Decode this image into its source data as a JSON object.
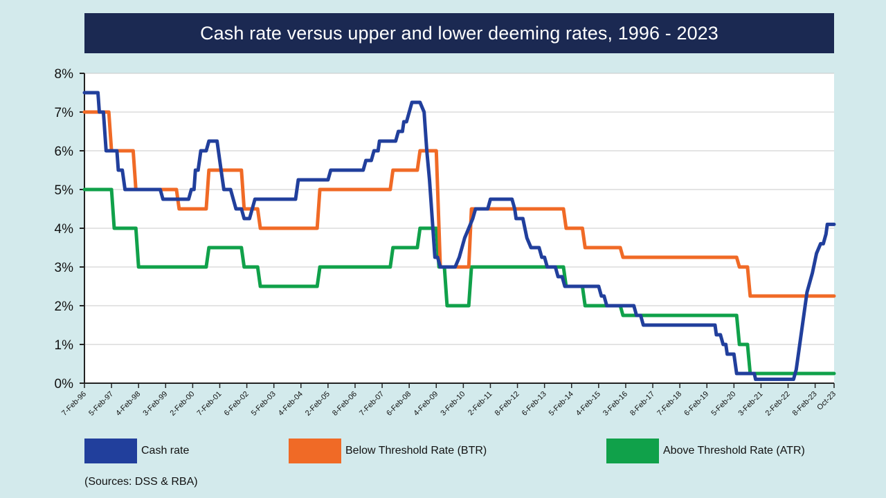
{
  "title": "Cash rate versus upper and lower deeming rates, 1996 - 2023",
  "source": "(Sources: DSS & RBA)",
  "colors": {
    "cash": "#213f9c",
    "btr": "#f06a26",
    "atr": "#10a14a",
    "title_bg": "#1b2952",
    "page_bg": "#d3eaec"
  },
  "chart_data": {
    "type": "line",
    "title": "Cash rate versus upper and lower deeming rates, 1996 - 2023",
    "xlabel": "",
    "ylabel": "",
    "xlim": [
      1996.1,
      2023.8
    ],
    "ylim": [
      0,
      8
    ],
    "y_ticks": [
      "0%",
      "1%",
      "2%",
      "3%",
      "4%",
      "5%",
      "6%",
      "7%",
      "8%"
    ],
    "x_ticks": [
      {
        "label": "7-Feb-96",
        "x": 1996.1
      },
      {
        "label": "5-Feb-97",
        "x": 1997.1
      },
      {
        "label": "4-Feb-98",
        "x": 1998.1
      },
      {
        "label": "3-Feb-99",
        "x": 1999.1
      },
      {
        "label": "2-Feb-00",
        "x": 2000.1
      },
      {
        "label": "7-Feb-01",
        "x": 2001.1
      },
      {
        "label": "6-Feb-02",
        "x": 2002.1
      },
      {
        "label": "5-Feb-03",
        "x": 2003.1
      },
      {
        "label": "4-Feb-04",
        "x": 2004.1
      },
      {
        "label": "2-Feb-05",
        "x": 2005.1
      },
      {
        "label": "8-Feb-06",
        "x": 2006.1
      },
      {
        "label": "7-Feb-07",
        "x": 2007.1
      },
      {
        "label": "6-Feb-08",
        "x": 2008.1
      },
      {
        "label": "4-Feb-09",
        "x": 2009.1
      },
      {
        "label": "3-Feb-10",
        "x": 2010.1
      },
      {
        "label": "2-Feb-11",
        "x": 2011.1
      },
      {
        "label": "8-Feb-12",
        "x": 2012.1
      },
      {
        "label": "6-Feb-13",
        "x": 2013.1
      },
      {
        "label": "5-Feb-14",
        "x": 2014.1
      },
      {
        "label": "4-Feb-15",
        "x": 2015.1
      },
      {
        "label": "3-Feb-16",
        "x": 2016.1
      },
      {
        "label": "8-Feb-17",
        "x": 2017.1
      },
      {
        "label": "7-Feb-18",
        "x": 2018.1
      },
      {
        "label": "6-Feb-19",
        "x": 2019.1
      },
      {
        "label": "5-Feb-20",
        "x": 2020.1
      },
      {
        "label": "3-Feb-21",
        "x": 2021.1
      },
      {
        "label": "2-Feb-22",
        "x": 2022.1
      },
      {
        "label": "8-Feb-23",
        "x": 2023.1
      },
      {
        "label": "Oct-23",
        "x": 2023.8
      }
    ],
    "grid": true,
    "legend_position": "bottom",
    "series": [
      {
        "name": "Cash rate",
        "color": "#213f9c",
        "points": [
          [
            1996.1,
            7.5
          ],
          [
            1996.6,
            7.5
          ],
          [
            1996.65,
            7.0
          ],
          [
            1996.8,
            7.0
          ],
          [
            1996.9,
            6.0
          ],
          [
            1997.3,
            6.0
          ],
          [
            1997.35,
            5.5
          ],
          [
            1997.5,
            5.5
          ],
          [
            1997.6,
            5.0
          ],
          [
            1998.9,
            5.0
          ],
          [
            1999.0,
            4.75
          ],
          [
            1999.95,
            4.75
          ],
          [
            2000.05,
            5.0
          ],
          [
            2000.15,
            5.0
          ],
          [
            2000.2,
            5.5
          ],
          [
            2000.3,
            5.5
          ],
          [
            2000.4,
            6.0
          ],
          [
            2000.6,
            6.0
          ],
          [
            2000.7,
            6.25
          ],
          [
            2001.0,
            6.25
          ],
          [
            2001.05,
            6.0
          ],
          [
            2001.15,
            5.5
          ],
          [
            2001.25,
            5.0
          ],
          [
            2001.5,
            5.0
          ],
          [
            2001.7,
            4.5
          ],
          [
            2001.9,
            4.5
          ],
          [
            2002.0,
            4.25
          ],
          [
            2002.2,
            4.25
          ],
          [
            2002.4,
            4.75
          ],
          [
            2003.9,
            4.75
          ],
          [
            2004.0,
            5.25
          ],
          [
            2005.1,
            5.25
          ],
          [
            2005.2,
            5.5
          ],
          [
            2006.4,
            5.5
          ],
          [
            2006.5,
            5.75
          ],
          [
            2006.7,
            5.75
          ],
          [
            2006.8,
            6.0
          ],
          [
            2006.95,
            6.0
          ],
          [
            2007.0,
            6.25
          ],
          [
            2007.6,
            6.25
          ],
          [
            2007.7,
            6.5
          ],
          [
            2007.85,
            6.5
          ],
          [
            2007.9,
            6.75
          ],
          [
            2008.0,
            6.75
          ],
          [
            2008.1,
            7.0
          ],
          [
            2008.2,
            7.25
          ],
          [
            2008.5,
            7.25
          ],
          [
            2008.65,
            7.0
          ],
          [
            2008.75,
            6.0
          ],
          [
            2008.85,
            5.25
          ],
          [
            2008.95,
            4.25
          ],
          [
            2009.05,
            3.25
          ],
          [
            2009.15,
            3.25
          ],
          [
            2009.25,
            3.0
          ],
          [
            2009.8,
            3.0
          ],
          [
            2009.95,
            3.25
          ],
          [
            2010.05,
            3.5
          ],
          [
            2010.15,
            3.75
          ],
          [
            2010.3,
            4.0
          ],
          [
            2010.45,
            4.25
          ],
          [
            2010.55,
            4.5
          ],
          [
            2011.0,
            4.5
          ],
          [
            2011.1,
            4.75
          ],
          [
            2011.9,
            4.75
          ],
          [
            2012.0,
            4.5
          ],
          [
            2012.05,
            4.25
          ],
          [
            2012.3,
            4.25
          ],
          [
            2012.45,
            3.75
          ],
          [
            2012.6,
            3.5
          ],
          [
            2012.9,
            3.5
          ],
          [
            2013.0,
            3.25
          ],
          [
            2013.1,
            3.25
          ],
          [
            2013.2,
            3.0
          ],
          [
            2013.5,
            3.0
          ],
          [
            2013.6,
            2.75
          ],
          [
            2013.75,
            2.75
          ],
          [
            2013.85,
            2.5
          ],
          [
            2015.1,
            2.5
          ],
          [
            2015.2,
            2.25
          ],
          [
            2015.3,
            2.25
          ],
          [
            2015.4,
            2.0
          ],
          [
            2016.4,
            2.0
          ],
          [
            2016.5,
            1.75
          ],
          [
            2016.65,
            1.75
          ],
          [
            2016.75,
            1.5
          ],
          [
            2019.4,
            1.5
          ],
          [
            2019.45,
            1.25
          ],
          [
            2019.6,
            1.25
          ],
          [
            2019.7,
            1.0
          ],
          [
            2019.8,
            1.0
          ],
          [
            2019.85,
            0.75
          ],
          [
            2020.1,
            0.75
          ],
          [
            2020.2,
            0.25
          ],
          [
            2020.85,
            0.25
          ],
          [
            2020.9,
            0.1
          ],
          [
            2022.3,
            0.1
          ],
          [
            2022.4,
            0.35
          ],
          [
            2022.5,
            0.85
          ],
          [
            2022.6,
            1.35
          ],
          [
            2022.7,
            1.85
          ],
          [
            2022.8,
            2.35
          ],
          [
            2022.9,
            2.6
          ],
          [
            2023.0,
            2.85
          ],
          [
            2023.15,
            3.35
          ],
          [
            2023.3,
            3.6
          ],
          [
            2023.4,
            3.6
          ],
          [
            2023.5,
            3.85
          ],
          [
            2023.55,
            4.1
          ],
          [
            2023.8,
            4.1
          ]
        ]
      },
      {
        "name": "Below Threshold Rate (BTR)",
        "color": "#f06a26",
        "points": [
          [
            1996.1,
            7.0
          ],
          [
            1997.0,
            7.0
          ],
          [
            1997.1,
            6.0
          ],
          [
            1997.9,
            6.0
          ],
          [
            1998.0,
            5.0
          ],
          [
            1999.5,
            5.0
          ],
          [
            1999.6,
            4.5
          ],
          [
            2000.6,
            4.5
          ],
          [
            2000.7,
            5.5
          ],
          [
            2001.9,
            5.5
          ],
          [
            2002.0,
            4.5
          ],
          [
            2002.5,
            4.5
          ],
          [
            2002.6,
            4.0
          ],
          [
            2004.7,
            4.0
          ],
          [
            2004.8,
            5.0
          ],
          [
            2007.4,
            5.0
          ],
          [
            2007.5,
            5.5
          ],
          [
            2008.4,
            5.5
          ],
          [
            2008.5,
            6.0
          ],
          [
            2009.1,
            6.0
          ],
          [
            2009.2,
            4.0
          ],
          [
            2009.25,
            3.0
          ],
          [
            2010.3,
            3.0
          ],
          [
            2010.4,
            4.5
          ],
          [
            2013.8,
            4.5
          ],
          [
            2013.9,
            4.0
          ],
          [
            2014.5,
            4.0
          ],
          [
            2014.6,
            3.5
          ],
          [
            2015.9,
            3.5
          ],
          [
            2016.0,
            3.25
          ],
          [
            2020.2,
            3.25
          ],
          [
            2020.3,
            3.0
          ],
          [
            2020.6,
            3.0
          ],
          [
            2020.7,
            2.25
          ],
          [
            2023.8,
            2.25
          ]
        ]
      },
      {
        "name": "Above Threshold Rate (ATR)",
        "color": "#10a14a",
        "points": [
          [
            1996.1,
            5.0
          ],
          [
            1997.1,
            5.0
          ],
          [
            1997.2,
            4.0
          ],
          [
            1998.0,
            4.0
          ],
          [
            1998.1,
            3.0
          ],
          [
            2000.6,
            3.0
          ],
          [
            2000.7,
            3.5
          ],
          [
            2001.9,
            3.5
          ],
          [
            2002.0,
            3.0
          ],
          [
            2002.5,
            3.0
          ],
          [
            2002.6,
            2.5
          ],
          [
            2004.7,
            2.5
          ],
          [
            2004.8,
            3.0
          ],
          [
            2007.4,
            3.0
          ],
          [
            2007.5,
            3.5
          ],
          [
            2008.4,
            3.5
          ],
          [
            2008.5,
            4.0
          ],
          [
            2009.1,
            4.0
          ],
          [
            2009.2,
            3.0
          ],
          [
            2009.4,
            3.0
          ],
          [
            2009.5,
            2.0
          ],
          [
            2010.3,
            2.0
          ],
          [
            2010.4,
            3.0
          ],
          [
            2013.8,
            3.0
          ],
          [
            2013.9,
            2.5
          ],
          [
            2014.5,
            2.5
          ],
          [
            2014.6,
            2.0
          ],
          [
            2015.9,
            2.0
          ],
          [
            2016.0,
            1.75
          ],
          [
            2020.2,
            1.75
          ],
          [
            2020.3,
            1.0
          ],
          [
            2020.6,
            1.0
          ],
          [
            2020.7,
            0.25
          ],
          [
            2023.8,
            0.25
          ]
        ]
      }
    ]
  },
  "legend": [
    {
      "label": "Cash rate",
      "color": "#213f9c"
    },
    {
      "label": "Below Threshold Rate (BTR)",
      "color": "#f06a26"
    },
    {
      "label": "Above Threshold Rate (ATR)",
      "color": "#10a14a"
    }
  ]
}
